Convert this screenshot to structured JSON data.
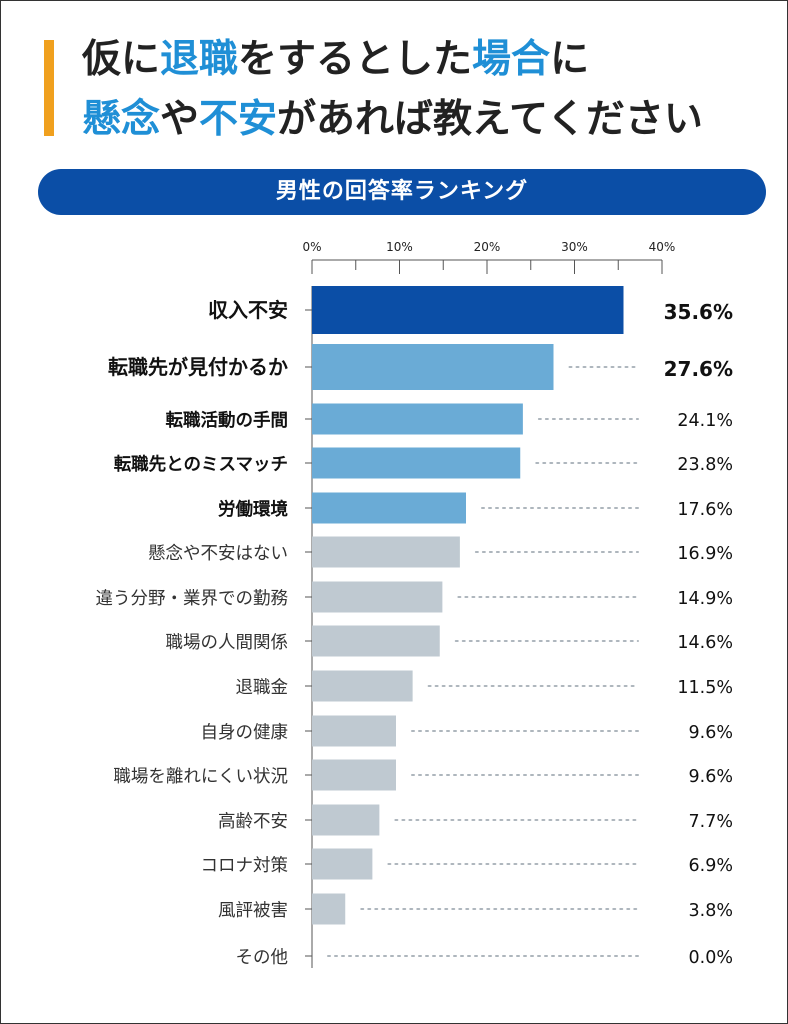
{
  "title": {
    "line1": [
      {
        "text": "仮に",
        "hl": false
      },
      {
        "text": "退職",
        "hl": true
      },
      {
        "text": "をするとした",
        "hl": false
      },
      {
        "text": "場合",
        "hl": true
      },
      {
        "text": "に",
        "hl": false
      }
    ],
    "line2": [
      {
        "text": "懸念",
        "hl": true
      },
      {
        "text": "や",
        "hl": false
      },
      {
        "text": "不安",
        "hl": true
      },
      {
        "text": "があれば教えてください",
        "hl": false
      }
    ]
  },
  "banner": "男性の回答率ランキング",
  "colors": {
    "accent": "#f0a01e",
    "title_highlight": "#1f8fd6",
    "banner": "#0b4ea6",
    "bar_top": "#0b4ea6",
    "bar_mid": "#6aabd6",
    "bar_rest": "#bfc9d1",
    "top_label": "#0b4ea6",
    "leader": "#aeb6bd",
    "axis": "#555555"
  },
  "chart_data": {
    "type": "bar",
    "orientation": "horizontal",
    "xlim": [
      0,
      40
    ],
    "ticks": [
      "0%",
      "10%",
      "20%",
      "30%",
      "40%"
    ],
    "tick_values": [
      0,
      10,
      20,
      30,
      40
    ],
    "categories": [
      "収入不安",
      "転職先が見付かるか",
      "転職活動の手間",
      "転職先とのミスマッチ",
      "労働環境",
      "懸念や不安はない",
      "違う分野・業界での勤務",
      "職場の人間関係",
      "退職金",
      "自身の健康",
      "職場を離れにくい状況",
      "高齢不安",
      "コロナ対策",
      "風評被害",
      "その他"
    ],
    "values": [
      35.6,
      27.6,
      24.1,
      23.8,
      17.6,
      16.9,
      14.9,
      14.6,
      11.5,
      9.6,
      9.6,
      7.7,
      6.9,
      3.8,
      0.0
    ],
    "value_labels": [
      "35.6%",
      "27.6%",
      "24.1%",
      "23.8%",
      "17.6%",
      "16.9%",
      "14.9%",
      "14.6%",
      "11.5%",
      "9.6%",
      "9.6%",
      "7.7%",
      "6.9%",
      "3.8%",
      "0.0%"
    ]
  }
}
